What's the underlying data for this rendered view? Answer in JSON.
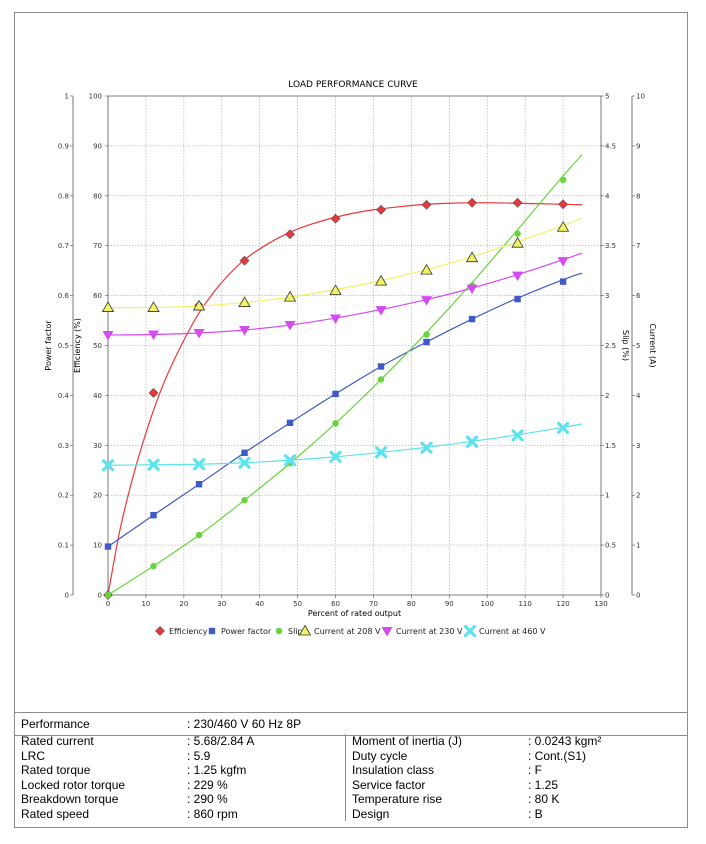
{
  "chart_data": {
    "type": "line",
    "title": "LOAD PERFORMANCE CURVE",
    "xlabel": "Percent of rated output",
    "xlim": [
      0,
      130
    ],
    "x_ticks": [
      "0",
      "10",
      "20",
      "30",
      "40",
      "50",
      "60",
      "70",
      "80",
      "90",
      "100",
      "110",
      "120",
      "130"
    ],
    "axes": {
      "power_factor": {
        "label": "Power factor",
        "ylim": [
          0,
          1
        ],
        "ticks": [
          "0",
          "0.1",
          "0.2",
          "0.3",
          "0.4",
          "0.5",
          "0.6",
          "0.7",
          "0.8",
          "0.9",
          "1"
        ]
      },
      "efficiency": {
        "label": "Efficiency (%)",
        "ylim": [
          0,
          100
        ],
        "ticks": [
          "0",
          "10",
          "20",
          "30",
          "40",
          "50",
          "60",
          "70",
          "80",
          "90",
          "100"
        ]
      },
      "slip": {
        "label": "Slip (%)",
        "ylim": [
          0,
          5
        ],
        "ticks": [
          "0",
          "0.5",
          "1",
          "1.5",
          "2",
          "2.5",
          "3",
          "3.5",
          "4",
          "4.5",
          "5"
        ]
      },
      "current": {
        "label": "Current (A)",
        "ylim": [
          0,
          10
        ],
        "ticks": [
          "0",
          "1",
          "2",
          "3",
          "4",
          "5",
          "6",
          "7",
          "8",
          "9",
          "10"
        ]
      }
    },
    "grid": true,
    "legend_position": "bottom",
    "series": [
      {
        "name": "Efficiency",
        "axis": "efficiency",
        "color": "#e8383a",
        "marker": "diamond",
        "x": [
          0,
          12,
          24,
          36,
          48,
          60,
          72,
          84,
          96,
          108,
          120
        ],
        "values": [
          0,
          40.5,
          58,
          67,
          72.3,
          75.4,
          77.2,
          78.2,
          78.6,
          78.6,
          78.3
        ],
        "curve_x": [
          0,
          3,
          6,
          9,
          12,
          15,
          18,
          21,
          24,
          28,
          32,
          36,
          42,
          48,
          54,
          60,
          66,
          72,
          78,
          84,
          90,
          96,
          102,
          108,
          114,
          120,
          125
        ],
        "curve_y": [
          0,
          12.5,
          22,
          30,
          37,
          43,
          48,
          52.5,
          56.5,
          60.8,
          64.3,
          67.2,
          70.3,
          72.7,
          74.4,
          75.7,
          76.7,
          77.4,
          77.9,
          78.3,
          78.5,
          78.6,
          78.6,
          78.5,
          78.4,
          78.3,
          78.2
        ]
      },
      {
        "name": "Power factor",
        "axis": "power_factor",
        "color": "#3f59c8",
        "marker": "square",
        "x": [
          0,
          12,
          24,
          36,
          48,
          60,
          72,
          84,
          96,
          108,
          120
        ],
        "values": [
          0.097,
          0.16,
          0.222,
          0.285,
          0.345,
          0.403,
          0.458,
          0.507,
          0.553,
          0.593,
          0.628
        ],
        "curve_x": [
          0,
          12,
          24,
          36,
          48,
          60,
          72,
          84,
          96,
          108,
          120,
          125
        ],
        "curve_y": [
          0.097,
          0.16,
          0.222,
          0.285,
          0.345,
          0.403,
          0.458,
          0.507,
          0.553,
          0.595,
          0.632,
          0.645
        ]
      },
      {
        "name": "Slip",
        "axis": "slip",
        "color": "#66d53b",
        "marker": "circle",
        "x": [
          0,
          12,
          24,
          36,
          48,
          60,
          72,
          84,
          96,
          108,
          120
        ],
        "values": [
          0,
          0.29,
          0.6,
          0.95,
          1.32,
          1.72,
          2.16,
          2.61,
          3.1,
          3.62,
          4.16
        ],
        "curve_x": [
          0,
          12,
          24,
          36,
          48,
          60,
          72,
          84,
          96,
          108,
          120,
          125
        ],
        "curve_y": [
          0,
          0.29,
          0.6,
          0.95,
          1.32,
          1.72,
          2.16,
          2.63,
          3.13,
          3.66,
          4.2,
          4.41
        ]
      },
      {
        "name": "Current at 208 V",
        "axis": "current",
        "color": "#f2f264",
        "marker": "triangle-up",
        "x": [
          0,
          12,
          24,
          36,
          48,
          60,
          72,
          84,
          96,
          108,
          120
        ],
        "values": [
          5.76,
          5.76,
          5.79,
          5.86,
          5.97,
          6.1,
          6.29,
          6.51,
          6.76,
          7.05,
          7.37
        ],
        "curve_x": [
          0,
          12,
          24,
          36,
          48,
          60,
          72,
          84,
          96,
          108,
          120,
          125
        ],
        "curve_y": [
          5.76,
          5.76,
          5.79,
          5.86,
          5.97,
          6.12,
          6.3,
          6.52,
          6.78,
          7.08,
          7.4,
          7.55
        ]
      },
      {
        "name": "Current at 230 V",
        "axis": "current",
        "color": "#d64af2",
        "marker": "triangle-down",
        "x": [
          0,
          12,
          24,
          36,
          48,
          60,
          72,
          84,
          96,
          108,
          120
        ],
        "values": [
          5.21,
          5.22,
          5.25,
          5.31,
          5.41,
          5.54,
          5.71,
          5.91,
          6.14,
          6.4,
          6.69
        ],
        "curve_x": [
          0,
          12,
          24,
          36,
          48,
          60,
          72,
          84,
          96,
          108,
          120,
          125
        ],
        "curve_y": [
          5.21,
          5.22,
          5.25,
          5.31,
          5.41,
          5.55,
          5.72,
          5.92,
          6.15,
          6.42,
          6.72,
          6.85
        ]
      },
      {
        "name": "Current at 460 V",
        "axis": "current",
        "color": "#5de3ee",
        "marker": "x",
        "x": [
          0,
          12,
          24,
          36,
          48,
          60,
          72,
          84,
          96,
          108,
          120
        ],
        "values": [
          2.6,
          2.61,
          2.62,
          2.65,
          2.7,
          2.77,
          2.86,
          2.95,
          3.07,
          3.2,
          3.35
        ],
        "curve_x": [
          0,
          12,
          24,
          36,
          48,
          60,
          72,
          84,
          96,
          108,
          120,
          125
        ],
        "curve_y": [
          2.6,
          2.61,
          2.62,
          2.65,
          2.7,
          2.77,
          2.86,
          2.96,
          3.08,
          3.21,
          3.36,
          3.43
        ]
      }
    ]
  },
  "specs": {
    "performance_label": "Performance",
    "performance_value": ": 230/460 V 60 Hz 8P",
    "left": [
      {
        "label": "Rated current",
        "value": ": 5.68/2.84 A"
      },
      {
        "label": "LRC",
        "value": ": 5.9"
      },
      {
        "label": "Rated torque",
        "value": ": 1.25 kgfm"
      },
      {
        "label": "Locked rotor torque",
        "value": ": 229 %"
      },
      {
        "label": "Breakdown torque",
        "value": ": 290 %"
      },
      {
        "label": "Rated speed",
        "value": ": 860 rpm"
      }
    ],
    "right": [
      {
        "label": "Moment of inertia (J)",
        "value": ": 0.0243 kgm²"
      },
      {
        "label": "Duty cycle",
        "value": ": Cont.(S1)"
      },
      {
        "label": "Insulation class",
        "value": ": F"
      },
      {
        "label": "Service factor",
        "value": ": 1.25"
      },
      {
        "label": "Temperature rise",
        "value": ": 80 K"
      },
      {
        "label": "Design",
        "value": ": B"
      }
    ]
  }
}
